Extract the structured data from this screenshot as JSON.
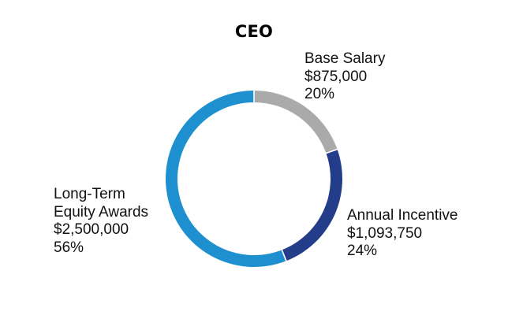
{
  "chart_data": {
    "type": "pie",
    "variant": "donut",
    "title": "CEO",
    "start_angle_deg": 0,
    "direction": "clockwise",
    "slices": [
      {
        "name_lines": [
          "Base Salary"
        ],
        "amount": "$875,000",
        "percent_label": "20%",
        "value": 875000,
        "color": "#aaaaaa"
      },
      {
        "name_lines": [
          "Annual Incentive"
        ],
        "amount": "$1,093,750",
        "percent_label": "24%",
        "value": 1093750,
        "color": "#233d8a"
      },
      {
        "name_lines": [
          "Long-Term",
          "Equity Awards"
        ],
        "amount": "$2,500,000",
        "percent_label": "56%",
        "value": 2500000,
        "color": "#1e90cf"
      }
    ]
  }
}
